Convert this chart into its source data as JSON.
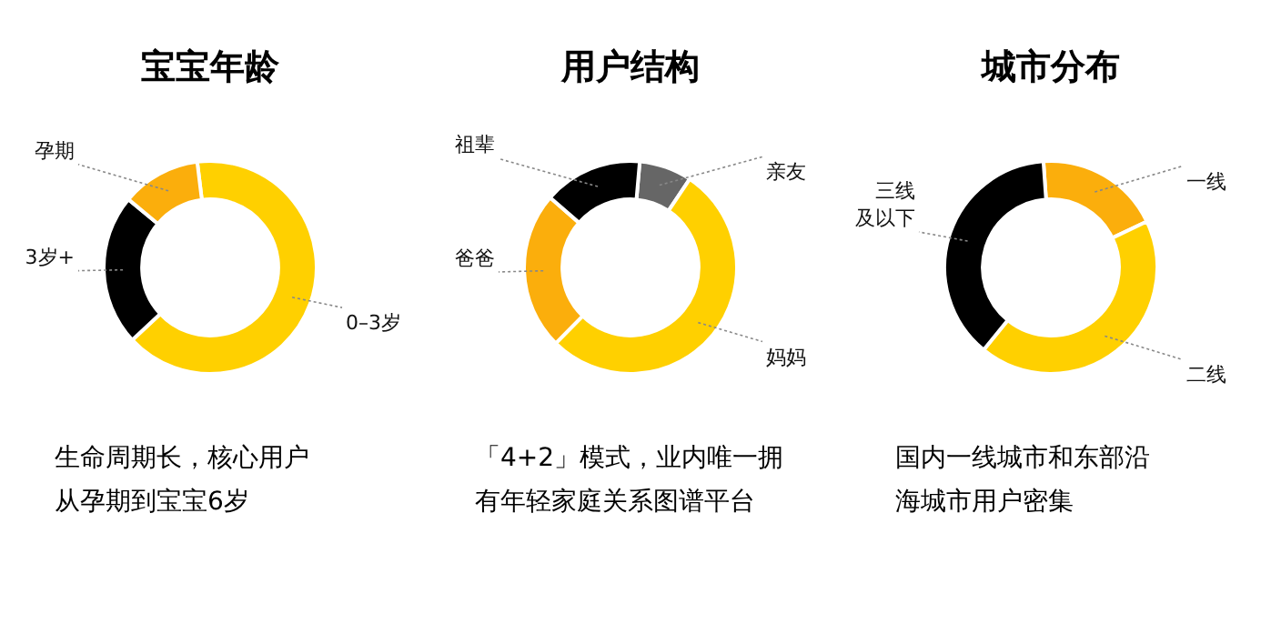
{
  "chart_data": [
    {
      "type": "donut",
      "title": "宝宝年龄",
      "categories": [
        "0–3岁",
        "3岁+",
        "孕期"
      ],
      "values": [
        65,
        23,
        12
      ],
      "colors": [
        "#ffd000",
        "#000000",
        "#fbae0c"
      ],
      "annotations": [
        "生命周期长，核心用户",
        "从孕期到宝宝6岁"
      ]
    },
    {
      "type": "donut",
      "title": "用户结构",
      "categories": [
        "亲友",
        "妈妈",
        "爸爸",
        "祖辈"
      ],
      "values": [
        8,
        53,
        24,
        15
      ],
      "colors": [
        "#666666",
        "#ffd000",
        "#fbae0c",
        "#000000"
      ],
      "annotations": [
        "「4+2」模式，业内唯一拥",
        "有年轻家庭关系图谱平台"
      ]
    },
    {
      "type": "donut",
      "title": "城市分布",
      "categories": [
        "一线",
        "二线",
        "三线及以下"
      ],
      "values": [
        19,
        43,
        38
      ],
      "colors": [
        "#fbae0c",
        "#ffd000",
        "#000000"
      ],
      "annotations": [
        "国内一线城市和东部沿",
        "海城市用户密集"
      ]
    }
  ]
}
